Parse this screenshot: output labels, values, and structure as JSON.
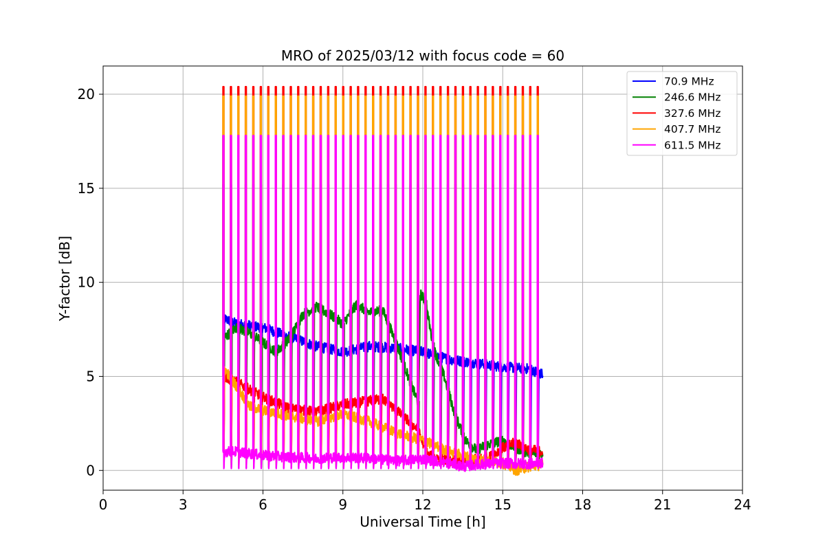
{
  "chart_data": {
    "type": "line",
    "title": "MRO of 2025/03/12 with focus code = 60",
    "xlabel": "Universal Time [h]",
    "ylabel": "Y-factor [dB]",
    "xlim": [
      0,
      24
    ],
    "ylim": [
      -1.05,
      21.5
    ],
    "xticks": [
      0,
      3,
      6,
      9,
      12,
      15,
      18,
      21,
      24
    ],
    "yticks": [
      0,
      5,
      10,
      15,
      20
    ],
    "grid": true,
    "legend_position": "top-right",
    "calibration_spikes": {
      "start_hour": 4.5,
      "end_hour": 16.3,
      "count": 43
    },
    "series": [
      {
        "name": " 70.9 MHz",
        "color": "#0000ff",
        "spike_peak": 15.2,
        "spike_dip": 0.15,
        "baseline": [
          [
            4.5,
            8.1
          ],
          [
            5.0,
            7.8
          ],
          [
            6.0,
            7.6
          ],
          [
            7.0,
            7.1
          ],
          [
            8.0,
            6.6
          ],
          [
            9.0,
            6.3
          ],
          [
            10.0,
            6.6
          ],
          [
            11.0,
            6.5
          ],
          [
            12.0,
            6.3
          ],
          [
            13.0,
            5.9
          ],
          [
            14.0,
            5.7
          ],
          [
            15.0,
            5.5
          ],
          [
            16.0,
            5.4
          ],
          [
            16.5,
            5.1
          ]
        ]
      },
      {
        "name": "246.6 MHz",
        "color": "#008000",
        "spike_peak": 17.8,
        "spike_dip": 0.3,
        "baseline": [
          [
            4.5,
            7.0
          ],
          [
            5.0,
            7.6
          ],
          [
            5.5,
            7.3
          ],
          [
            6.0,
            6.8
          ],
          [
            6.5,
            6.3
          ],
          [
            7.0,
            7.0
          ],
          [
            7.5,
            8.3
          ],
          [
            8.0,
            8.7
          ],
          [
            8.5,
            8.3
          ],
          [
            9.0,
            7.8
          ],
          [
            9.5,
            8.8
          ],
          [
            10.0,
            8.4
          ],
          [
            10.5,
            8.5
          ],
          [
            11.0,
            6.8
          ],
          [
            11.5,
            4.8
          ],
          [
            11.85,
            3.5
          ],
          [
            11.9,
            9.4
          ],
          [
            12.1,
            9.0
          ],
          [
            12.4,
            6.5
          ],
          [
            12.8,
            5.0
          ],
          [
            13.2,
            3.0
          ],
          [
            13.6,
            1.6
          ],
          [
            14.0,
            1.1
          ],
          [
            14.5,
            1.4
          ],
          [
            15.0,
            1.6
          ],
          [
            15.5,
            1.2
          ],
          [
            16.0,
            0.9
          ],
          [
            16.5,
            0.9
          ]
        ]
      },
      {
        "name": "327.6 MHz",
        "color": "#ff0000",
        "spike_peak": 20.4,
        "spike_dip": 0.4,
        "baseline": [
          [
            4.5,
            5.0
          ],
          [
            5.0,
            4.7
          ],
          [
            6.0,
            3.9
          ],
          [
            7.0,
            3.3
          ],
          [
            8.0,
            3.1
          ],
          [
            9.0,
            3.5
          ],
          [
            10.0,
            3.7
          ],
          [
            10.5,
            3.8
          ],
          [
            11.0,
            3.2
          ],
          [
            11.8,
            2.2
          ],
          [
            12.2,
            0.8
          ],
          [
            13.0,
            0.5
          ],
          [
            14.0,
            0.6
          ],
          [
            14.5,
            0.7
          ],
          [
            15.0,
            1.2
          ],
          [
            15.5,
            1.5
          ],
          [
            16.0,
            1.1
          ],
          [
            16.5,
            1.0
          ]
        ]
      },
      {
        "name": "407.7 MHz",
        "color": "#ffa500",
        "spike_peak": 19.9,
        "spike_dip": 0.2,
        "baseline": [
          [
            4.5,
            5.5
          ],
          [
            5.0,
            4.5
          ],
          [
            5.5,
            3.4
          ],
          [
            6.0,
            3.2
          ],
          [
            7.0,
            2.9
          ],
          [
            8.0,
            2.6
          ],
          [
            9.0,
            3.0
          ],
          [
            10.0,
            2.6
          ],
          [
            11.0,
            2.0
          ],
          [
            12.0,
            1.6
          ],
          [
            13.0,
            1.0
          ],
          [
            14.0,
            0.6
          ],
          [
            15.0,
            0.4
          ],
          [
            15.5,
            0.0
          ],
          [
            16.0,
            0.2
          ],
          [
            16.5,
            0.3
          ]
        ]
      },
      {
        "name": "611.5 MHz",
        "color": "#ff00ff",
        "spike_peak": 17.8,
        "spike_dip": 0.1,
        "baseline": [
          [
            4.5,
            1.0
          ],
          [
            5.0,
            1.0
          ],
          [
            6.0,
            0.8
          ],
          [
            7.0,
            0.7
          ],
          [
            8.0,
            0.65
          ],
          [
            9.0,
            0.7
          ],
          [
            10.0,
            0.65
          ],
          [
            11.0,
            0.5
          ],
          [
            12.0,
            0.6
          ],
          [
            13.0,
            0.4
          ],
          [
            13.5,
            0.2
          ],
          [
            14.0,
            0.3
          ],
          [
            15.0,
            0.4
          ],
          [
            16.0,
            0.35
          ],
          [
            16.5,
            0.4
          ]
        ]
      }
    ]
  }
}
